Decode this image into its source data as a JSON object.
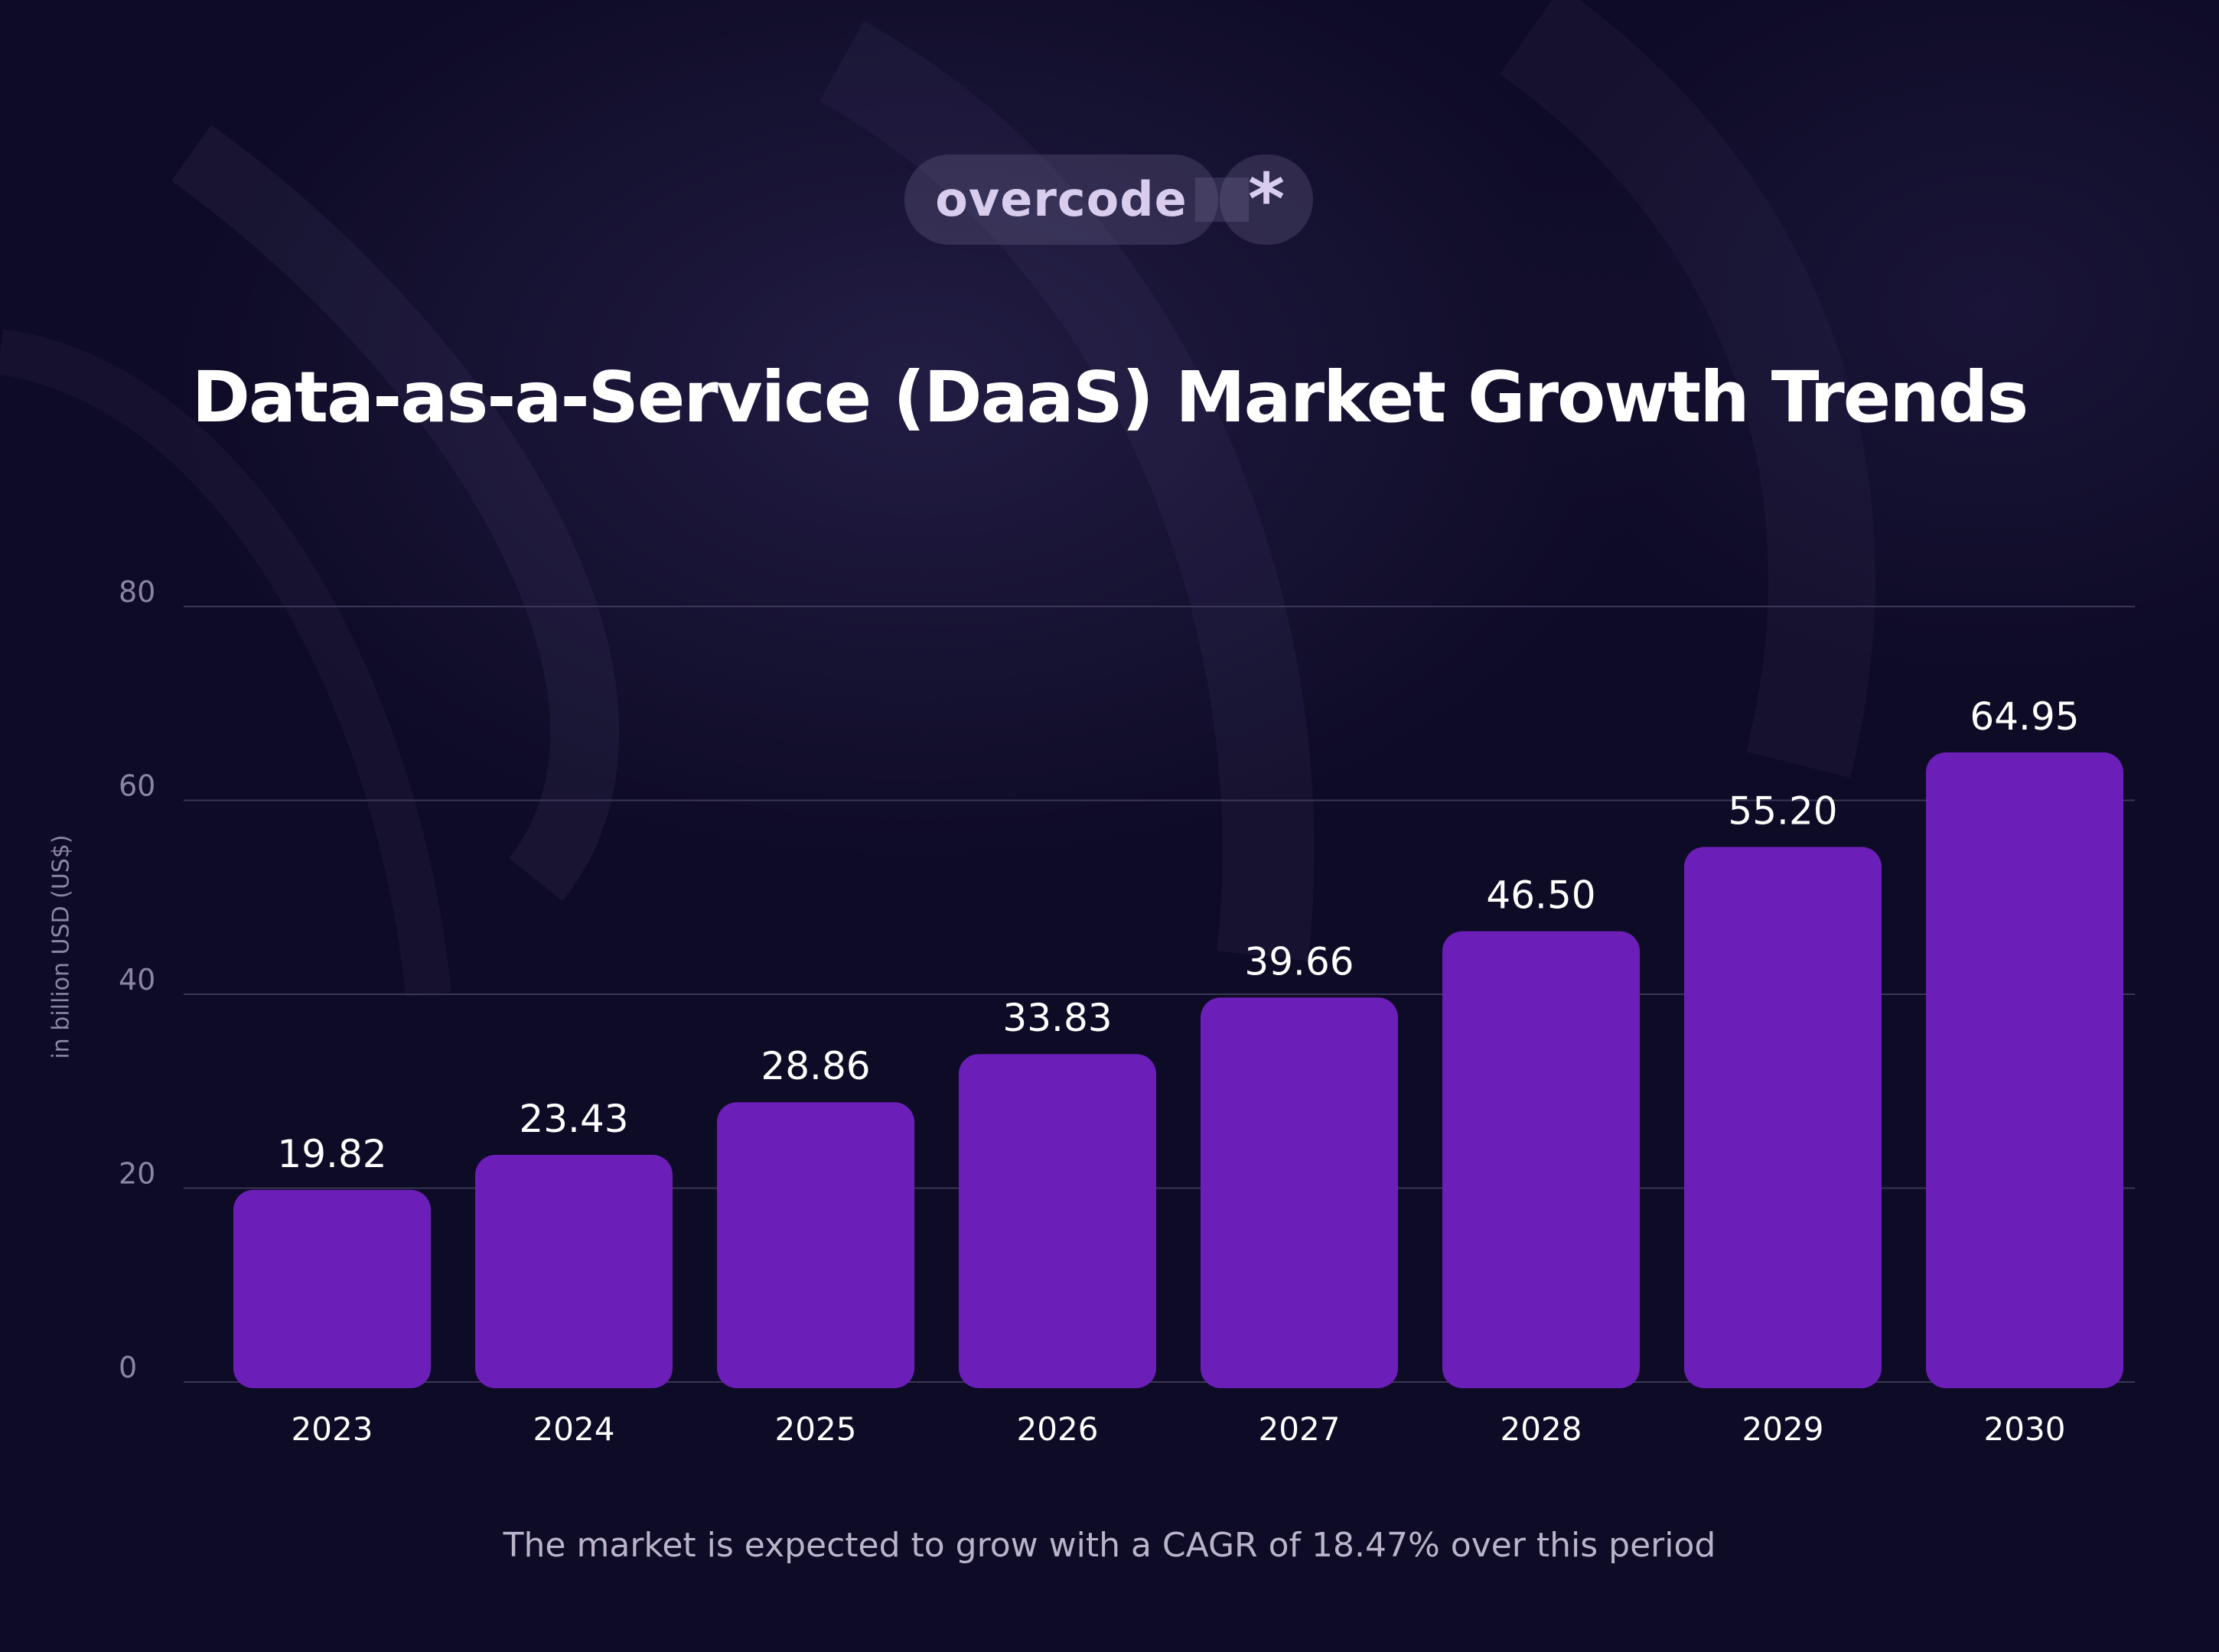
{
  "brand": {
    "name": "overcode",
    "mark": "*"
  },
  "colors": {
    "background": "#0e0b26",
    "bar": "#6b1fb8",
    "grid": "#3a3655",
    "text": "#ffffff",
    "muted": "#8a85a3"
  },
  "chart_data": {
    "type": "bar",
    "title": "Data-as-a-Service (DaaS) Market Growth Trends",
    "xlabel": "",
    "ylabel": "in billion USD (US$)",
    "categories": [
      "2023",
      "2024",
      "2025",
      "2026",
      "2027",
      "2028",
      "2029",
      "2030"
    ],
    "values": [
      19.82,
      23.43,
      28.86,
      33.83,
      39.66,
      46.5,
      55.2,
      64.95
    ],
    "value_labels": [
      "19.82",
      "23.43",
      "28.86",
      "33.83",
      "39.66",
      "46.50",
      "55.20",
      "64.95"
    ],
    "ylim": [
      0,
      80
    ],
    "yticks": [
      0,
      20,
      40,
      60,
      80
    ],
    "ytick_labels": [
      "0",
      "20",
      "40",
      "60",
      "80"
    ],
    "grid": true,
    "legend": "none"
  },
  "footnote": "The market is expected to grow with a CAGR of 18.47% over this period"
}
